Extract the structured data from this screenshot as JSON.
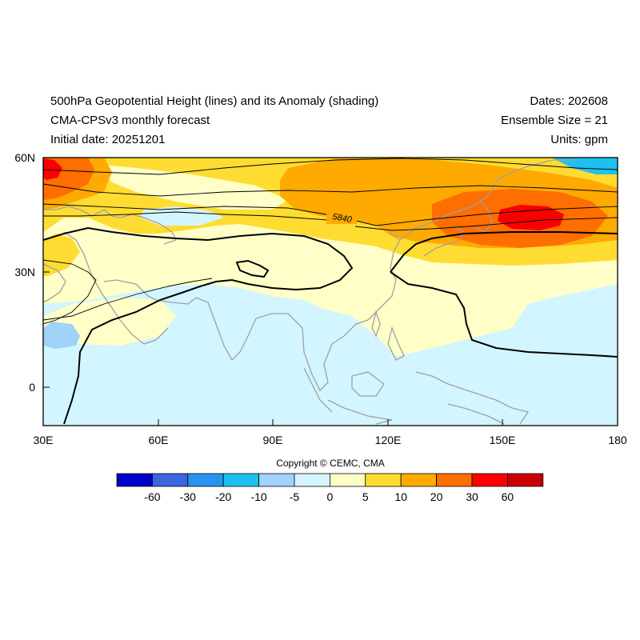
{
  "header": {
    "title": "500hPa Geopotential Height (lines) and its Anomaly (shading)",
    "model": "CMA-CPSv3 monthly forecast",
    "initial": "Initial date: 20251201",
    "dates": "Dates: 202608",
    "ensemble": "Ensemble Size = 21",
    "units": "Units: gpm"
  },
  "map": {
    "lon_labels": [
      "30E",
      "60E",
      "90E",
      "120E",
      "150E",
      "180"
    ],
    "lat_labels": [
      "60N",
      "30N",
      "0"
    ],
    "contour_label": "5840"
  },
  "copyright": "Copyright © CEMC, CMA",
  "colorbar": {
    "colors": [
      "#0000c8",
      "#3c64dc",
      "#2896f0",
      "#1ec0f0",
      "#a0d2fa",
      "#d2f5ff",
      "#ffffc8",
      "#ffdc32",
      "#ffaa00",
      "#ff6e00",
      "#fa0000",
      "#c80000"
    ],
    "labels": [
      "-60",
      "-30",
      "-20",
      "-10",
      "-5",
      "0",
      "5",
      "10",
      "20",
      "30",
      "60"
    ]
  }
}
